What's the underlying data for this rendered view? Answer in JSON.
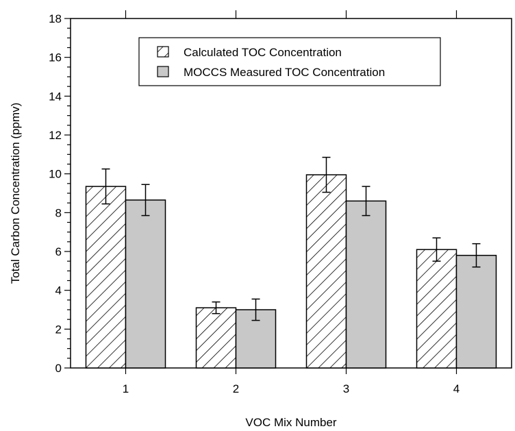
{
  "chart_data": {
    "type": "bar",
    "categories": [
      "1",
      "2",
      "3",
      "4"
    ],
    "series": [
      {
        "name": "Calculated TOC Concentration",
        "values": [
          9.35,
          3.1,
          9.95,
          6.1
        ],
        "errors": [
          0.9,
          0.3,
          0.9,
          0.6
        ],
        "fill": "hatched"
      },
      {
        "name": "MOCCS Measured TOC Concentration",
        "values": [
          8.65,
          3.0,
          8.6,
          5.8
        ],
        "errors": [
          0.8,
          0.55,
          0.75,
          0.6
        ],
        "fill": "#c8c8c8"
      }
    ],
    "xlabel": "VOC Mix Number",
    "ylabel": "Total Carbon Concentration (ppmv)",
    "ylim": [
      0,
      18
    ],
    "yticks": [
      "0",
      "2",
      "4",
      "6",
      "8",
      "10",
      "12",
      "14",
      "16",
      "18"
    ],
    "legend_position": "top-center",
    "grid": false
  }
}
